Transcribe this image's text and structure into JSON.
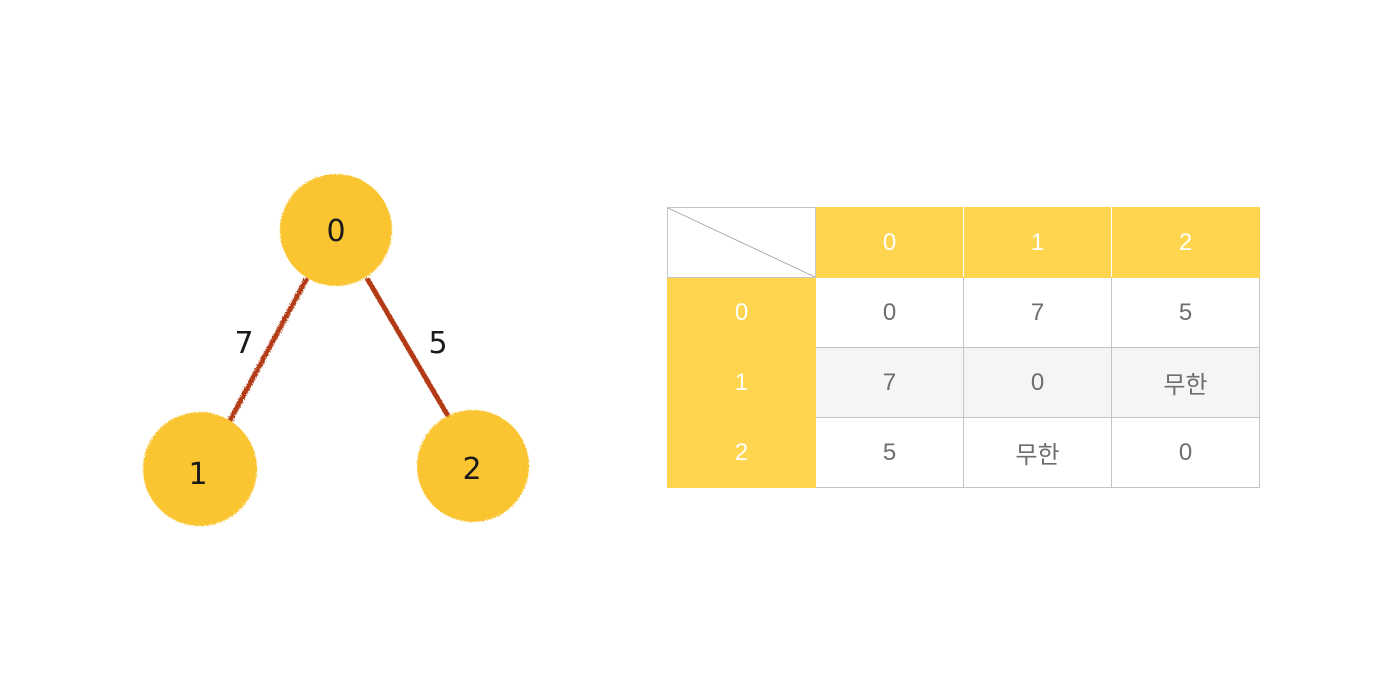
{
  "graph": {
    "nodes": [
      {
        "id": "0",
        "label": "0"
      },
      {
        "id": "1",
        "label": "1"
      },
      {
        "id": "2",
        "label": "2"
      }
    ],
    "edges": [
      {
        "from": "0",
        "to": "1",
        "weight": "7"
      },
      {
        "from": "0",
        "to": "2",
        "weight": "5"
      }
    ],
    "node_color": "#fbc531",
    "edge_color": "#b23a17"
  },
  "matrix": {
    "col_headers": [
      "0",
      "1",
      "2"
    ],
    "rows": [
      {
        "header": "0",
        "cells": [
          "0",
          "7",
          "5"
        ]
      },
      {
        "header": "1",
        "cells": [
          "7",
          "0",
          "무한"
        ]
      },
      {
        "header": "2",
        "cells": [
          "5",
          "무한",
          "0"
        ]
      }
    ],
    "header_color": "#ffd54f",
    "stripe_color": "#f5f5f5"
  }
}
